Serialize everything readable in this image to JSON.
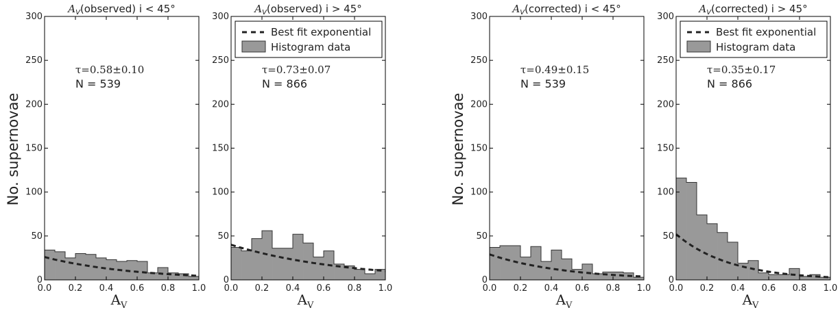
{
  "figure": {
    "ylabel": "No. supernovae",
    "xlabel": "A",
    "xlabel_sub": "V"
  },
  "colors": {
    "hist_fill": "#999999",
    "hist_edge": "#333333",
    "fit_line": "#222222",
    "axes": "#000000"
  },
  "legend_entries": [
    "Best fit exponential",
    "Histogram data"
  ],
  "chart_data": [
    {
      "type": "bar",
      "title": "A_V(observed) i < 45°",
      "annotation_tau": "τ=0.58±0.10",
      "annotation_n": "N = 539",
      "legend": false,
      "xlim": [
        0.0,
        1.0
      ],
      "ylim": [
        0,
        300
      ],
      "xticks": [
        "0.0",
        "0.2",
        "0.4",
        "0.6",
        "0.8",
        "1.0"
      ],
      "yticks": [
        "0",
        "50",
        "100",
        "150",
        "200",
        "250",
        "300"
      ],
      "bin_edges": [
        0.0,
        0.0667,
        0.1333,
        0.2,
        0.2667,
        0.3333,
        0.4,
        0.4667,
        0.5333,
        0.6,
        0.6667,
        0.7333,
        0.8,
        0.8667,
        0.9333,
        1.0
      ],
      "series": [
        {
          "name": "Histogram data",
          "values": [
            34,
            32,
            25,
            30,
            29,
            25,
            23,
            21,
            22,
            21,
            8,
            14,
            8,
            7,
            4
          ]
        },
        {
          "name": "Best fit exponential",
          "fit": {
            "amplitude": 26,
            "tau": 0.58
          }
        }
      ]
    },
    {
      "type": "bar",
      "title": "A_V(observed) i > 45°",
      "annotation_tau": "τ=0.73±0.07",
      "annotation_n": "N = 866",
      "legend": true,
      "xlim": [
        0.0,
        1.0
      ],
      "ylim": [
        0,
        300
      ],
      "xticks": [
        "0.0",
        "0.2",
        "0.4",
        "0.6",
        "0.8",
        "1.0"
      ],
      "yticks": [
        "0",
        "50",
        "100",
        "150",
        "200",
        "250",
        "300"
      ],
      "bin_edges": [
        0.0,
        0.0667,
        0.1333,
        0.2,
        0.2667,
        0.3333,
        0.4,
        0.4667,
        0.5333,
        0.6,
        0.6667,
        0.7333,
        0.8,
        0.8667,
        0.9333,
        1.0
      ],
      "series": [
        {
          "name": "Histogram data",
          "values": [
            37,
            33,
            47,
            56,
            36,
            36,
            52,
            42,
            26,
            33,
            18,
            16,
            12,
            7,
            12
          ]
        },
        {
          "name": "Best fit exponential",
          "fit": {
            "amplitude": 40,
            "tau": 0.73
          }
        }
      ]
    },
    {
      "type": "bar",
      "title": "A_V(corrected) i < 45°",
      "annotation_tau": "τ=0.49±0.15",
      "annotation_n": "N = 539",
      "legend": false,
      "xlim": [
        0.0,
        1.0
      ],
      "ylim": [
        0,
        300
      ],
      "xticks": [
        "0.0",
        "0.2",
        "0.4",
        "0.6",
        "0.8",
        "1.0"
      ],
      "yticks": [
        "0",
        "50",
        "100",
        "150",
        "200",
        "250",
        "300"
      ],
      "bin_edges": [
        0.0,
        0.0667,
        0.1333,
        0.2,
        0.2667,
        0.3333,
        0.4,
        0.4667,
        0.5333,
        0.6,
        0.6667,
        0.7333,
        0.8,
        0.8667,
        0.9333,
        1.0
      ],
      "series": [
        {
          "name": "Histogram data",
          "values": [
            37,
            39,
            39,
            26,
            38,
            21,
            34,
            24,
            12,
            18,
            7,
            9,
            9,
            8,
            3
          ]
        },
        {
          "name": "Best fit exponential",
          "fit": {
            "amplitude": 29,
            "tau": 0.49
          }
        }
      ]
    },
    {
      "type": "bar",
      "title": "A_V(corrected) i > 45°",
      "annotation_tau": "τ=0.35±0.17",
      "annotation_n": "N = 866",
      "legend": true,
      "xlim": [
        0.0,
        1.0
      ],
      "ylim": [
        0,
        300
      ],
      "xticks": [
        "0.0",
        "0.2",
        "0.4",
        "0.6",
        "0.8",
        "1.0"
      ],
      "yticks": [
        "0",
        "50",
        "100",
        "150",
        "200",
        "250",
        "300"
      ],
      "bin_edges": [
        0.0,
        0.0667,
        0.1333,
        0.2,
        0.2667,
        0.3333,
        0.4,
        0.4667,
        0.5333,
        0.6,
        0.6667,
        0.7333,
        0.8,
        0.8667,
        0.9333,
        1.0
      ],
      "series": [
        {
          "name": "Histogram data",
          "values": [
            116,
            111,
            74,
            64,
            54,
            43,
            19,
            22,
            8,
            6,
            6,
            13,
            4,
            6,
            3
          ]
        },
        {
          "name": "Best fit exponential",
          "fit": {
            "amplitude": 52,
            "tau": 0.35
          }
        }
      ]
    }
  ]
}
